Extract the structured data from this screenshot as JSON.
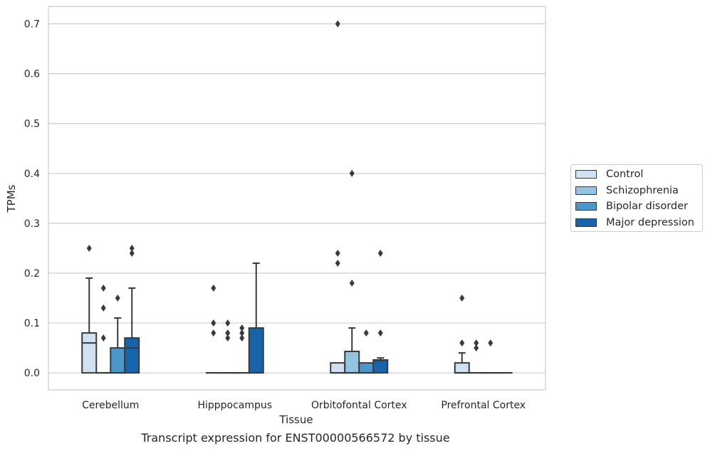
{
  "caption": "Transcript expression for ENST00000566572 by tissue",
  "chart_data": {
    "type": "box",
    "xlabel": "Tissue",
    "ylabel": "TPMs",
    "ylim": [
      -0.034,
      0.735
    ],
    "yticks": [
      0.0,
      0.1,
      0.2,
      0.3,
      0.4,
      0.5,
      0.6,
      0.7
    ],
    "ytick_labels": [
      "0.0",
      "0.1",
      "0.2",
      "0.3",
      "0.4",
      "0.5",
      "0.6",
      "0.7"
    ],
    "grid": "horizontal",
    "legend_position": "right",
    "categories": [
      "Cerebellum",
      "Hipppocampus",
      "Orbitofontal Cortex",
      "Prefrontal Cortex"
    ],
    "series": [
      {
        "name": "Control",
        "color": "#d0e1f2",
        "boxes": [
          {
            "q1": 0.0,
            "median": 0.06,
            "q3": 0.08,
            "whisker_low": 0.0,
            "whisker_high": 0.19,
            "outliers": [
              0.25
            ]
          },
          {
            "q1": 0.0,
            "median": 0.0,
            "q3": 0.0,
            "whisker_low": 0.0,
            "whisker_high": 0.0,
            "outliers": [
              0.17,
              0.1,
              0.08
            ]
          },
          {
            "q1": 0.0,
            "median": 0.0,
            "q3": 0.02,
            "whisker_low": 0.0,
            "whisker_high": 0.02,
            "outliers": [
              0.7,
              0.24,
              0.22
            ]
          },
          {
            "q1": 0.0,
            "median": 0.0,
            "q3": 0.02,
            "whisker_low": 0.0,
            "whisker_high": 0.04,
            "outliers": [
              0.15,
              0.06
            ]
          }
        ]
      },
      {
        "name": "Schizophrenia",
        "color": "#94c4df",
        "boxes": [
          {
            "q1": 0.0,
            "median": 0.0,
            "q3": 0.0,
            "whisker_low": 0.0,
            "whisker_high": 0.0,
            "outliers": [
              0.17,
              0.13,
              0.07
            ]
          },
          {
            "q1": 0.0,
            "median": 0.0,
            "q3": 0.0,
            "whisker_low": 0.0,
            "whisker_high": 0.0,
            "outliers": [
              0.1,
              0.08,
              0.07
            ]
          },
          {
            "q1": 0.0,
            "median": 0.0,
            "q3": 0.043,
            "whisker_low": 0.0,
            "whisker_high": 0.09,
            "outliers": [
              0.4,
              0.18
            ]
          },
          {
            "q1": 0.0,
            "median": 0.0,
            "q3": 0.0,
            "whisker_low": 0.0,
            "whisker_high": 0.0,
            "outliers": [
              0.06,
              0.05
            ]
          }
        ]
      },
      {
        "name": "Bipolar disorder",
        "color": "#4a98c9",
        "boxes": [
          {
            "q1": 0.0,
            "median": 0.0,
            "q3": 0.05,
            "whisker_low": 0.0,
            "whisker_high": 0.11,
            "outliers": [
              0.15
            ]
          },
          {
            "q1": 0.0,
            "median": 0.0,
            "q3": 0.0,
            "whisker_low": 0.0,
            "whisker_high": 0.0,
            "outliers": [
              0.09,
              0.08,
              0.07
            ]
          },
          {
            "q1": 0.0,
            "median": 0.0,
            "q3": 0.02,
            "whisker_low": 0.0,
            "whisker_high": 0.02,
            "outliers": [
              0.08
            ]
          },
          {
            "q1": 0.0,
            "median": 0.0,
            "q3": 0.0,
            "whisker_low": 0.0,
            "whisker_high": 0.0,
            "outliers": [
              0.06
            ]
          }
        ]
      },
      {
        "name": "Major depression",
        "color": "#1764ab",
        "boxes": [
          {
            "q1": 0.0,
            "median": 0.05,
            "q3": 0.07,
            "whisker_low": 0.0,
            "whisker_high": 0.17,
            "outliers": [
              0.25,
              0.24
            ]
          },
          {
            "q1": 0.0,
            "median": 0.0,
            "q3": 0.09,
            "whisker_low": 0.0,
            "whisker_high": 0.22,
            "outliers": []
          },
          {
            "q1": 0.0,
            "median": 0.025,
            "q3": 0.026,
            "whisker_low": 0.0,
            "whisker_high": 0.03,
            "outliers": [
              0.24,
              0.08
            ]
          },
          {
            "q1": 0.0,
            "median": 0.0,
            "q3": 0.0,
            "whisker_low": 0.0,
            "whisker_high": 0.0,
            "outliers": []
          }
        ]
      }
    ]
  }
}
